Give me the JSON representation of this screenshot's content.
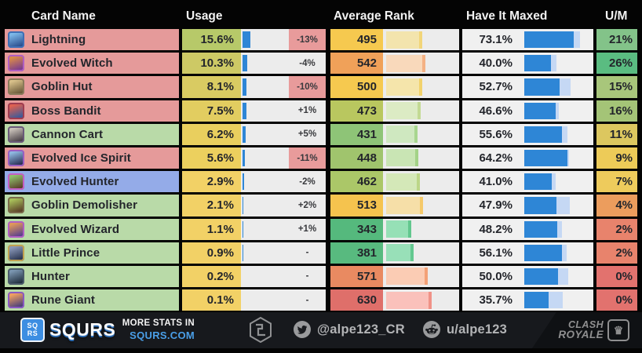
{
  "header": {
    "columns": [
      "Card Name",
      "Usage",
      "Average Rank",
      "Have It Maxed",
      "U/M"
    ]
  },
  "chart_data": {
    "type": "table",
    "columns": [
      "Card Name",
      "Usage %",
      "Usage Change",
      "Average Rank",
      "Have It Maxed %",
      "U/M %"
    ],
    "rows": [
      [
        "Lightning",
        15.6,
        "-13%",
        495,
        73.1,
        21
      ],
      [
        "Evolved Witch",
        10.3,
        "-4%",
        542,
        40.0,
        26
      ],
      [
        "Goblin Hut",
        8.1,
        "-10%",
        500,
        52.7,
        15
      ],
      [
        "Boss Bandit",
        7.5,
        "+1%",
        473,
        46.6,
        16
      ],
      [
        "Cannon Cart",
        6.2,
        "+5%",
        431,
        55.6,
        11
      ],
      [
        "Evolved Ice Spirit",
        5.6,
        "-11%",
        448,
        64.2,
        9
      ],
      [
        "Evolved Hunter",
        2.9,
        "-2%",
        462,
        41.0,
        7
      ],
      [
        "Goblin Demolisher",
        2.1,
        "+2%",
        513,
        47.9,
        4
      ],
      [
        "Evolved Wizard",
        1.1,
        "+1%",
        343,
        48.2,
        2
      ],
      [
        "Little Prince",
        0.9,
        "-",
        381,
        56.1,
        2
      ],
      [
        "Hunter",
        0.2,
        "-",
        571,
        50.0,
        0
      ],
      [
        "Rune Giant",
        0.1,
        "-",
        630,
        35.7,
        0
      ]
    ]
  },
  "rows": [
    {
      "name": "Lightning",
      "name_bg": "#e59a9a",
      "usage": "15.6%",
      "usage_pct": 15.6,
      "usage_bg": "#b7c969",
      "change": "-13%",
      "change_alert": true,
      "rank": "495",
      "rank_num": 495,
      "rank_bg": "#f6c94f",
      "rank_bar": "#f3e4ad",
      "rank_cap": "#f2d579",
      "maxed": "73.1%",
      "maxed_pct": 73.1,
      "tail_pct": 10,
      "um": "21%",
      "um_bg": "#83c389",
      "icon": {
        "c1": "#7db8e8",
        "c2": "#2a4f8f",
        "frame": "#3f6fb5"
      }
    },
    {
      "name": "Evolved Witch",
      "name_bg": "#e59a9a",
      "usage": "10.3%",
      "usage_pct": 10.3,
      "usage_bg": "#cdc965",
      "change": "-4%",
      "change_alert": false,
      "rank": "542",
      "rank_num": 542,
      "rank_bg": "#f0a159",
      "rank_bar": "#f9d9bb",
      "rank_cap": "#f4b184",
      "maxed": "40.0%",
      "maxed_pct": 40.0,
      "tail_pct": 8,
      "um": "26%",
      "um_bg": "#5abc81",
      "icon": {
        "c1": "#d98a4a",
        "c2": "#7a3b8f",
        "frame": "#b05ec2"
      }
    },
    {
      "name": "Goblin Hut",
      "name_bg": "#e59a9a",
      "usage": "8.1%",
      "usage_pct": 8.1,
      "usage_bg": "#d9cb62",
      "change": "-10%",
      "change_alert": true,
      "rank": "500",
      "rank_num": 500,
      "rank_bg": "#f6c94f",
      "rank_bar": "#f5e5ab",
      "rank_cap": "#f2d26c",
      "maxed": "52.7%",
      "maxed_pct": 52.7,
      "tail_pct": 16,
      "um": "15%",
      "um_bg": "#a8c67b",
      "icon": {
        "c1": "#d8c08a",
        "c2": "#6b5a3a",
        "frame": "#8a7a5a"
      }
    },
    {
      "name": "Boss Bandit",
      "name_bg": "#e59a9a",
      "usage": "7.5%",
      "usage_pct": 7.5,
      "usage_bg": "#e2cd60",
      "change": "+1%",
      "change_alert": false,
      "rank": "473",
      "rank_num": 473,
      "rank_bg": "#b9c75f",
      "rank_bar": "#dcebc4",
      "rank_cap": "#c3da94",
      "maxed": "46.6%",
      "maxed_pct": 46.6,
      "tail_pct": 5,
      "um": "16%",
      "um_bg": "#a4c477",
      "icon": {
        "c1": "#e06050",
        "c2": "#3a5a9a",
        "frame": "#a03c50"
      }
    },
    {
      "name": "Cannon Cart",
      "name_bg": "#b9daa8",
      "usage": "6.2%",
      "usage_pct": 6.2,
      "usage_bg": "#e9cf5e",
      "change": "+5%",
      "change_alert": false,
      "rank": "431",
      "rank_num": 431,
      "rank_bg": "#8ec477",
      "rank_bar": "#cfe8c0",
      "rank_cap": "#a8d68f",
      "maxed": "55.6%",
      "maxed_pct": 55.6,
      "tail_pct": 9,
      "um": "11%",
      "um_bg": "#dcc75f",
      "icon": {
        "c1": "#c8c0b8",
        "c2": "#4a4248",
        "frame": "#6a5a7a"
      }
    },
    {
      "name": "Evolved Ice Spirit",
      "name_bg": "#e59a9a",
      "usage": "5.6%",
      "usage_pct": 5.6,
      "usage_bg": "#ecd05e",
      "change": "-11%",
      "change_alert": true,
      "rank": "448",
      "rank_num": 448,
      "rank_bg": "#a0c46d",
      "rank_bar": "#c9e5b4",
      "rank_cap": "#a4d287",
      "maxed": "64.2%",
      "maxed_pct": 64.2,
      "tail_pct": 2,
      "um": "9%",
      "um_bg": "#edcb58",
      "icon": {
        "c1": "#8fb8e0",
        "c2": "#2a2f55",
        "frame": "#9a5ec2"
      }
    },
    {
      "name": "Evolved Hunter",
      "name_bg": "#94abe8",
      "usage": "2.9%",
      "usage_pct": 2.9,
      "usage_bg": "#f2d166",
      "change": "-2%",
      "change_alert": false,
      "rank": "462",
      "rank_num": 462,
      "rank_bg": "#abc768",
      "rank_bar": "#d4e8b8",
      "rank_cap": "#bcd687",
      "maxed": "41.0%",
      "maxed_pct": 41.0,
      "tail_pct": 6,
      "um": "7%",
      "um_bg": "#eecb5c",
      "icon": {
        "c1": "#8fc06a",
        "c2": "#5a3f2a",
        "frame": "#c45ec2"
      }
    },
    {
      "name": "Goblin Demolisher",
      "name_bg": "#b9daa8",
      "usage": "2.1%",
      "usage_pct": 2.1,
      "usage_bg": "#f2d166",
      "change": "+2%",
      "change_alert": false,
      "rank": "513",
      "rank_num": 513,
      "rank_bg": "#f5c34e",
      "rank_bar": "#f6dfa8",
      "rank_cap": "#f5c96a",
      "maxed": "47.9%",
      "maxed_pct": 47.9,
      "tail_pct": 20,
      "um": "4%",
      "um_bg": "#ec9d5d",
      "icon": {
        "c1": "#a8c05a",
        "c2": "#5a3f28",
        "frame": "#7a6a4a"
      }
    },
    {
      "name": "Evolved Wizard",
      "name_bg": "#b9daa8",
      "usage": "1.1%",
      "usage_pct": 1.1,
      "usage_bg": "#f2d166",
      "change": "+1%",
      "change_alert": false,
      "rank": "343",
      "rank_num": 343,
      "rank_bg": "#55b97d",
      "rank_bar": "#96e0b6",
      "rank_cap": "#62c78e",
      "maxed": "48.2%",
      "maxed_pct": 48.2,
      "tail_pct": 8,
      "um": "2%",
      "um_bg": "#e8836c",
      "icon": {
        "c1": "#e0985a",
        "c2": "#5a3f8f",
        "frame": "#b05ec2"
      }
    },
    {
      "name": "Little Prince",
      "name_bg": "#b9daa8",
      "usage": "0.9%",
      "usage_pct": 0.9,
      "usage_bg": "#f2d166",
      "change": "-",
      "change_alert": false,
      "rank": "381",
      "rank_num": 381,
      "rank_bg": "#58ba7f",
      "rank_bar": "#98e0b8",
      "rank_cap": "#64c890",
      "maxed": "56.1%",
      "maxed_pct": 56.1,
      "tail_pct": 7,
      "um": "2%",
      "um_bg": "#e8836c",
      "icon": {
        "c1": "#8a98b8",
        "c2": "#2a3550",
        "frame": "#c0a050"
      }
    },
    {
      "name": "Hunter",
      "name_bg": "#b9daa8",
      "usage": "0.2%",
      "usage_pct": 0.2,
      "usage_bg": "#f2d166",
      "change": "-",
      "change_alert": false,
      "rank": "571",
      "rank_num": 571,
      "rank_bg": "#e98a61",
      "rank_bar": "#fbccb4",
      "rank_cap": "#f3a177",
      "maxed": "50.0%",
      "maxed_pct": 50.0,
      "tail_pct": 15,
      "um": "0%",
      "um_bg": "#e2726e",
      "icon": {
        "c1": "#7a95b0",
        "c2": "#22303f",
        "frame": "#4a5a6a"
      }
    },
    {
      "name": "Rune Giant",
      "name_bg": "#b9daa8",
      "usage": "0.1%",
      "usage_pct": 0.1,
      "usage_bg": "#f2d166",
      "change": "-",
      "change_alert": false,
      "rank": "630",
      "rank_num": 630,
      "rank_bg": "#df6f6a",
      "rank_bar": "#fac1bb",
      "rank_cap": "#f09287",
      "maxed": "35.7%",
      "maxed_pct": 35.7,
      "tail_pct": 21,
      "um": "0%",
      "um_bg": "#e2726e",
      "icon": {
        "c1": "#f0a060",
        "c2": "#4a3f7a",
        "frame": "#8a5ac2"
      }
    }
  ],
  "colors": {
    "usage_bar_blue": "#2e86d6",
    "maxed_bar_blue": "#2e86d6",
    "maxed_bar_tail": "#c5d8f4",
    "change_alert_bg": "#e89b9b",
    "footer_bg": "#17191d",
    "footer_accent_blue": "#4a9fe8"
  },
  "footer": {
    "logo_square_line1": "SQ",
    "logo_square_line2": "RS",
    "brand": "SQURS",
    "more_stats_line1": "MORE STATS IN",
    "more_stats_line2": "SQURS.COM",
    "twitter_handle": "@alpe123_CR",
    "reddit_handle": "u/alpe123",
    "cr_logo_line1": "CLASH",
    "cr_logo_line2": "ROYALE"
  }
}
